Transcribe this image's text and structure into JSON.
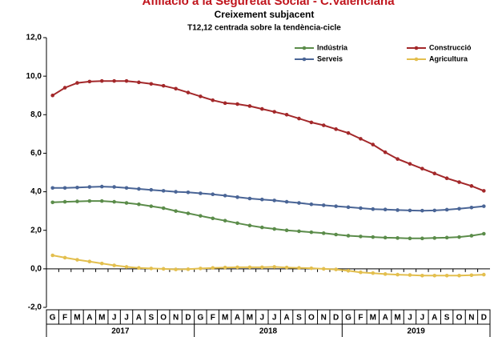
{
  "chart_data": {
    "type": "line",
    "title": "Afiliació a la Seguretat Social - C.Valenciana",
    "subtitle": "Creixement subjacent",
    "note": "T12,12 centrada sobre la tendència-cicle",
    "categories": [
      "G",
      "F",
      "M",
      "A",
      "M",
      "J",
      "J",
      "A",
      "S",
      "O",
      "N",
      "D",
      "G",
      "F",
      "M",
      "A",
      "M",
      "J",
      "J",
      "A",
      "S",
      "O",
      "N",
      "D",
      "G",
      "F",
      "M",
      "A",
      "M",
      "J",
      "J",
      "A",
      "S",
      "O",
      "N",
      "D"
    ],
    "year_groups": [
      "2017",
      "2018",
      "2019"
    ],
    "ylim": [
      -2,
      12
    ],
    "yticks": [
      {
        "value": -2,
        "label": "-2,0"
      },
      {
        "value": 0,
        "label": "0,0"
      },
      {
        "value": 2,
        "label": "2,0"
      },
      {
        "value": 4,
        "label": "4,0"
      },
      {
        "value": 6,
        "label": "6,0"
      },
      {
        "value": 8,
        "label": "8,0"
      },
      {
        "value": 10,
        "label": "10,0"
      },
      {
        "value": 12,
        "label": "12,0"
      }
    ],
    "series": [
      {
        "name": "Indústria",
        "color": "#5b8c4a",
        "values": [
          3.45,
          3.48,
          3.5,
          3.52,
          3.52,
          3.48,
          3.42,
          3.35,
          3.25,
          3.15,
          3.0,
          2.88,
          2.75,
          2.62,
          2.5,
          2.37,
          2.25,
          2.15,
          2.07,
          2.0,
          1.95,
          1.9,
          1.85,
          1.78,
          1.72,
          1.68,
          1.65,
          1.62,
          1.6,
          1.58,
          1.58,
          1.6,
          1.62,
          1.65,
          1.72,
          1.82
        ]
      },
      {
        "name": "Construcció",
        "color": "#a3282a",
        "values": [
          9.0,
          9.4,
          9.65,
          9.72,
          9.75,
          9.75,
          9.75,
          9.68,
          9.6,
          9.5,
          9.35,
          9.15,
          8.95,
          8.75,
          8.6,
          8.55,
          8.45,
          8.3,
          8.15,
          8.0,
          7.8,
          7.6,
          7.45,
          7.25,
          7.05,
          6.75,
          6.45,
          6.05,
          5.7,
          5.45,
          5.2,
          4.95,
          4.7,
          4.5,
          4.3,
          4.05
        ]
      },
      {
        "name": "Serveis",
        "color": "#4a6596",
        "values": [
          4.2,
          4.2,
          4.22,
          4.25,
          4.27,
          4.25,
          4.2,
          4.15,
          4.1,
          4.05,
          4.0,
          3.97,
          3.92,
          3.87,
          3.8,
          3.72,
          3.65,
          3.6,
          3.55,
          3.48,
          3.42,
          3.35,
          3.3,
          3.25,
          3.2,
          3.15,
          3.1,
          3.08,
          3.05,
          3.03,
          3.02,
          3.03,
          3.07,
          3.12,
          3.18,
          3.25
        ]
      },
      {
        "name": "Agricultura",
        "color": "#e3bf4e",
        "values": [
          0.7,
          0.58,
          0.47,
          0.38,
          0.28,
          0.18,
          0.1,
          0.05,
          0.02,
          0.0,
          -0.03,
          -0.02,
          0.02,
          0.05,
          0.07,
          0.08,
          0.08,
          0.08,
          0.1,
          0.07,
          0.05,
          0.03,
          0.0,
          -0.03,
          -0.1,
          -0.18,
          -0.22,
          -0.27,
          -0.3,
          -0.32,
          -0.35,
          -0.35,
          -0.35,
          -0.35,
          -0.33,
          -0.3
        ]
      }
    ]
  }
}
